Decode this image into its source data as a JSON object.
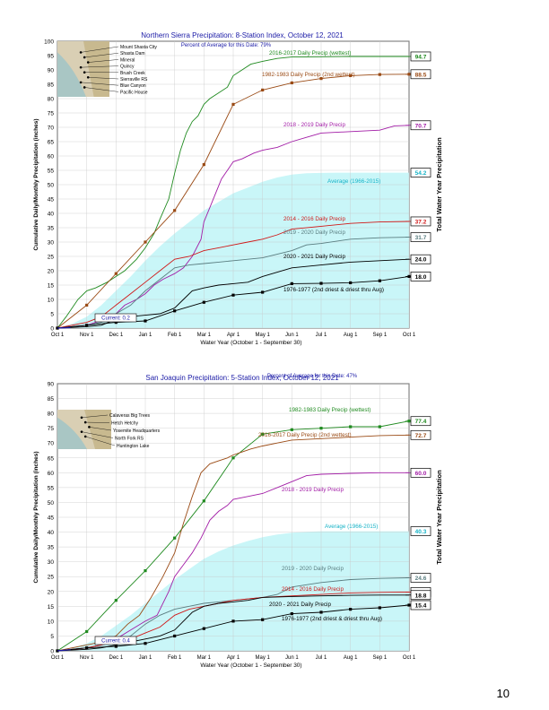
{
  "page_number": "10",
  "colors": {
    "average_fill": "#c9f6f8",
    "average_label": "#16b3c7",
    "wet1": "#1f8a1f",
    "wet2": "#9a4a14",
    "y1819": "#a21ca6",
    "y1416": "#d01818",
    "y1920": "#5a7d80",
    "y2021": "#000000",
    "y7677": "#000000",
    "current": "#1a1aa6",
    "title": "#1a1aa6",
    "grid": "#c8c8c8"
  },
  "chart_data": [
    {
      "type": "line",
      "title": "Northern Sierra Precipitation: 8-Station Index, October 12, 2021",
      "percent_note": "Percent of Average for this Date: 79%",
      "xlabel": "Water Year (October 1 - September 30)",
      "ylabel": "Cumulative Daily/Monthly Precipitation (inches)",
      "ylabel_right": "Total Water Year Precipitation",
      "categories": [
        "Oct 1",
        "Nov 1",
        "Dec 1",
        "Jan 1",
        "Feb 1",
        "Mar 1",
        "Apr 1",
        "May 1",
        "Jun 1",
        "Jul 1",
        "Aug 1",
        "Sep 1",
        "Oct 1"
      ],
      "ylim": [
        0,
        100
      ],
      "yticks": [
        0,
        5,
        10,
        15,
        20,
        25,
        30,
        35,
        40,
        45,
        50,
        55,
        60,
        65,
        70,
        75,
        80,
        85,
        90,
        95,
        100
      ],
      "grid": true,
      "stations": [
        "Mount Shasta City",
        "Shasta Dam",
        "Mineral",
        "Quincy",
        "Brush Creek",
        "Sierraville RS",
        "Blue Canyon",
        "Pacific House"
      ],
      "current_label": "Current: 0.2",
      "current_value": 0.2,
      "average": {
        "name": "Average (1966-2015)",
        "x": [
          0,
          0.5,
          1,
          1.5,
          2,
          2.5,
          3,
          3.5,
          4,
          4.5,
          5,
          5.5,
          6,
          6.5,
          7,
          7.5,
          8,
          8.5,
          9,
          9.5,
          10,
          11,
          12
        ],
        "y": [
          0,
          1.5,
          4,
          8,
          13,
          18,
          23.5,
          28.5,
          33,
          37,
          41,
          44,
          47,
          49,
          51,
          52.5,
          53.5,
          54,
          54.1,
          54.2,
          54.2,
          54.2,
          54.2
        ],
        "total_label": "54.2"
      },
      "series": [
        {
          "name": "2016-2017 Daily Precip (wettest)",
          "color_key": "wet1",
          "total_label": "94.7",
          "x": [
            0,
            0.3,
            0.7,
            1.0,
            1.3,
            1.7,
            2.0,
            2.3,
            2.7,
            3.0,
            3.3,
            3.5,
            3.8,
            4.0,
            4.2,
            4.4,
            4.6,
            4.8,
            5.0,
            5.2,
            5.5,
            5.8,
            6.0,
            6.3,
            6.6,
            7.0,
            7.5,
            8.0,
            9.0,
            10.0,
            11.0,
            12.0
          ],
          "y": [
            0,
            4,
            10,
            13,
            14,
            16,
            18,
            20,
            24,
            28,
            33,
            38,
            45,
            54,
            62,
            68,
            72,
            74,
            78,
            80,
            82,
            84,
            88,
            90,
            92,
            93,
            94,
            94.5,
            94.6,
            94.7,
            94.7,
            94.7
          ]
        },
        {
          "name": "1982-1983 Daily Precip (2nd wettest)",
          "color_key": "wet2",
          "total_label": "88.5",
          "x": [
            0,
            1,
            2,
            3,
            4,
            5,
            6,
            7,
            8,
            9,
            10,
            11,
            12
          ],
          "y": [
            0,
            8,
            19,
            30,
            41,
            57,
            78,
            83,
            85.5,
            87,
            88,
            88.4,
            88.5
          ],
          "markers": true
        },
        {
          "name": "2018 - 2019 Daily Precip",
          "color_key": "y1819",
          "total_label": "70.7",
          "x": [
            0,
            1.0,
            1.3,
            1.7,
            2.0,
            2.3,
            2.7,
            3.0,
            3.3,
            3.6,
            4.0,
            4.3,
            4.6,
            4.9,
            5.0,
            5.2,
            5.4,
            5.6,
            5.8,
            6.0,
            6.3,
            6.7,
            7.0,
            7.5,
            8.0,
            8.5,
            9.0,
            10,
            11,
            11.5,
            12
          ],
          "y": [
            0,
            1,
            2,
            3,
            5,
            8,
            10,
            12,
            15,
            17,
            19,
            21,
            25,
            31,
            37,
            42,
            47,
            52,
            55,
            58,
            59,
            61,
            62,
            63,
            65,
            66.5,
            68,
            68.5,
            69,
            70.5,
            70.7
          ]
        },
        {
          "name": "2014 - 2016 Daily Precip",
          "color_key": "y1416",
          "total_label": "37.2",
          "x": [
            0,
            1,
            1.5,
            2,
            2.5,
            3,
            3.5,
            4,
            4.5,
            5,
            5.5,
            6,
            6.5,
            7,
            7.5,
            8,
            9,
            10,
            11,
            12
          ],
          "y": [
            0,
            2,
            4,
            8,
            12,
            16,
            20,
            24,
            25,
            27,
            28,
            29,
            30,
            31,
            32.5,
            34.5,
            35.5,
            36.5,
            37,
            37.2
          ]
        },
        {
          "name": "2019 - 2020 Daily Precip",
          "color_key": "y1920",
          "total_label": "31.7",
          "x": [
            0,
            1,
            1.5,
            2,
            2.5,
            3,
            3.5,
            4,
            4.5,
            5,
            5.5,
            6,
            6.5,
            7,
            8,
            8.5,
            9,
            10,
            11,
            12
          ],
          "y": [
            0,
            1,
            2,
            5,
            8,
            13,
            17,
            21,
            22,
            22.5,
            23,
            23.5,
            24,
            24.5,
            27,
            29,
            29.5,
            31,
            31.5,
            31.7
          ]
        },
        {
          "name": "2020 - 2021 Daily Precip",
          "color_key": "y2021",
          "total_label": "24.0",
          "x": [
            0,
            1,
            1.5,
            2,
            2.5,
            3,
            3.5,
            4,
            4.3,
            4.6,
            5,
            5.5,
            6,
            6.5,
            7,
            8,
            9,
            10,
            11,
            12
          ],
          "y": [
            0,
            0.5,
            1,
            3,
            4,
            4.5,
            5,
            7,
            10,
            13,
            14,
            15,
            15.5,
            16,
            18,
            21,
            22,
            23,
            23.5,
            24
          ]
        },
        {
          "name": "1976-1977 (2nd driest & driest thru Aug)",
          "color_key": "y7677",
          "total_label": "18.0",
          "x": [
            0,
            1,
            2,
            3,
            4,
            5,
            6,
            7,
            8,
            9,
            10,
            11,
            12
          ],
          "y": [
            0,
            1,
            2,
            2.5,
            6,
            9,
            11.5,
            12.5,
            15.5,
            15.6,
            15.8,
            16.5,
            18
          ],
          "markers": true
        }
      ]
    },
    {
      "type": "line",
      "title": "San Joaquin Precipitation: 5-Station Index, October 12, 2021",
      "percent_note": "Percent of Average for this Date: 47%",
      "xlabel": "Water Year (October 1 - September 30)",
      "ylabel": "Cumulative Daily/Monthly Precipitation (inches)",
      "ylabel_right": "Total Water Year Precipitation",
      "categories": [
        "Oct 1",
        "Nov 1",
        "Dec 1",
        "Jan 1",
        "Feb 1",
        "Mar 1",
        "Apr 1",
        "May 1",
        "Jun 1",
        "Jul 1",
        "Aug 1",
        "Sep 1",
        "Oct 1"
      ],
      "ylim": [
        0,
        90
      ],
      "yticks": [
        0,
        5,
        10,
        15,
        20,
        25,
        30,
        35,
        40,
        45,
        50,
        55,
        60,
        65,
        70,
        75,
        80,
        85,
        90
      ],
      "grid": true,
      "stations": [
        "Calaveras Big Trees",
        "Hetch Hetchy",
        "Yosemite Headquarters",
        "North Fork RS",
        "Huntington Lake"
      ],
      "current_label": "Current: 0.4",
      "current_value": 0.4,
      "average": {
        "name": "Average (1966-2015)",
        "x": [
          0,
          0.5,
          1,
          1.5,
          2,
          2.5,
          3,
          3.5,
          4,
          4.5,
          5,
          5.5,
          6,
          6.5,
          7,
          7.5,
          8,
          8.5,
          9,
          10,
          11,
          12
        ],
        "y": [
          0,
          1,
          2.5,
          5,
          8.5,
          12,
          16,
          20,
          24,
          27.5,
          31,
          33.5,
          35.5,
          37,
          38.3,
          39.2,
          39.8,
          40.1,
          40.3,
          40.3,
          40.3,
          40.3
        ],
        "total_label": "40.3"
      },
      "series": [
        {
          "name": "1982-1983 Daily Precip (wettest)",
          "color_key": "wet1",
          "total_label": "77.4",
          "x": [
            0,
            1,
            2,
            3,
            4,
            5,
            6,
            7,
            8,
            9,
            10,
            11,
            12
          ],
          "y": [
            0,
            6.5,
            17,
            27,
            38,
            50.5,
            65,
            73,
            74.5,
            75,
            75.5,
            75.5,
            77.4
          ],
          "markers": true
        },
        {
          "name": "2016-2017 Daily Precip (2nd wettest)",
          "color_key": "wet2",
          "total_label": "72.7",
          "x": [
            0,
            0.5,
            1,
            1.5,
            2,
            2.4,
            2.8,
            3.2,
            3.6,
            4.0,
            4.3,
            4.6,
            4.9,
            5.2,
            5.5,
            5.8,
            6.0,
            6.3,
            6.6,
            7,
            7.5,
            8,
            9,
            10,
            11,
            12
          ],
          "y": [
            0,
            1,
            2,
            3,
            5,
            9,
            12,
            18,
            25,
            33,
            43,
            52,
            60,
            63,
            64,
            65,
            66,
            67,
            68,
            69,
            70,
            71,
            71.5,
            72,
            72.5,
            72.7
          ]
        },
        {
          "name": "2018 - 2019 Daily Precip",
          "color_key": "y1819",
          "total_label": "60.0",
          "x": [
            0,
            1,
            1.5,
            2,
            2.5,
            3,
            3.4,
            3.8,
            4.0,
            4.3,
            4.6,
            4.9,
            5.2,
            5.5,
            5.8,
            6.0,
            6.5,
            7.0,
            7.5,
            8.0,
            8.5,
            9,
            10,
            11,
            12
          ],
          "y": [
            0,
            1,
            2,
            4,
            7,
            10,
            12,
            20,
            25,
            29,
            33,
            38,
            44,
            47,
            49,
            51,
            52,
            53,
            55,
            57,
            59,
            59.5,
            59.8,
            60,
            60
          ]
        },
        {
          "name": "2019 - 2020 Daily Precip",
          "color_key": "y1920",
          "total_label": "24.6",
          "x": [
            0,
            1,
            1.5,
            2,
            2.5,
            3,
            3.5,
            4,
            4.5,
            5,
            5.5,
            6,
            6.5,
            7,
            7.5,
            8,
            9,
            10,
            11,
            12
          ],
          "y": [
            0,
            1,
            2,
            3,
            5,
            9,
            12,
            14,
            15,
            16,
            16.5,
            17,
            17.5,
            18,
            19,
            21.5,
            23,
            24,
            24.4,
            24.6
          ]
        },
        {
          "name": "2014 - 2016 Daily Precip",
          "color_key": "y1416",
          "total_label": "19.8",
          "x": [
            0,
            1,
            1.5,
            2,
            2.5,
            3,
            3.5,
            4,
            4.5,
            5,
            5.5,
            6,
            6.5,
            7,
            8,
            9,
            10,
            11,
            12
          ],
          "y": [
            0,
            1,
            2,
            3,
            4,
            6,
            8,
            12,
            14,
            15,
            16,
            17,
            17.5,
            18,
            18.5,
            19,
            19.5,
            19.7,
            19.8
          ]
        },
        {
          "name": "2020 - 2021 Daily Precip",
          "color_key": "y2021",
          "total_label": "18.8",
          "x": [
            0,
            1,
            1.5,
            2,
            2.5,
            3,
            3.5,
            4,
            4.3,
            4.6,
            5,
            5.5,
            6,
            6.5,
            7,
            8,
            9,
            10,
            11,
            12
          ],
          "y": [
            0,
            0.5,
            1,
            2,
            3,
            4,
            5,
            7,
            10,
            13,
            15,
            16,
            16.5,
            17,
            18,
            18.3,
            18.5,
            18.7,
            18.8,
            18.8
          ]
        },
        {
          "name": "1976-1977 (2nd driest & driest thru Aug)",
          "color_key": "y7677",
          "total_label": "15.4",
          "x": [
            0,
            1,
            2,
            3,
            4,
            5,
            6,
            7,
            8,
            9,
            10,
            11,
            12
          ],
          "y": [
            0,
            1,
            1.5,
            2.5,
            5,
            7.5,
            10,
            10.5,
            12.5,
            13,
            14,
            14.5,
            15.4
          ],
          "markers": true
        }
      ]
    }
  ]
}
